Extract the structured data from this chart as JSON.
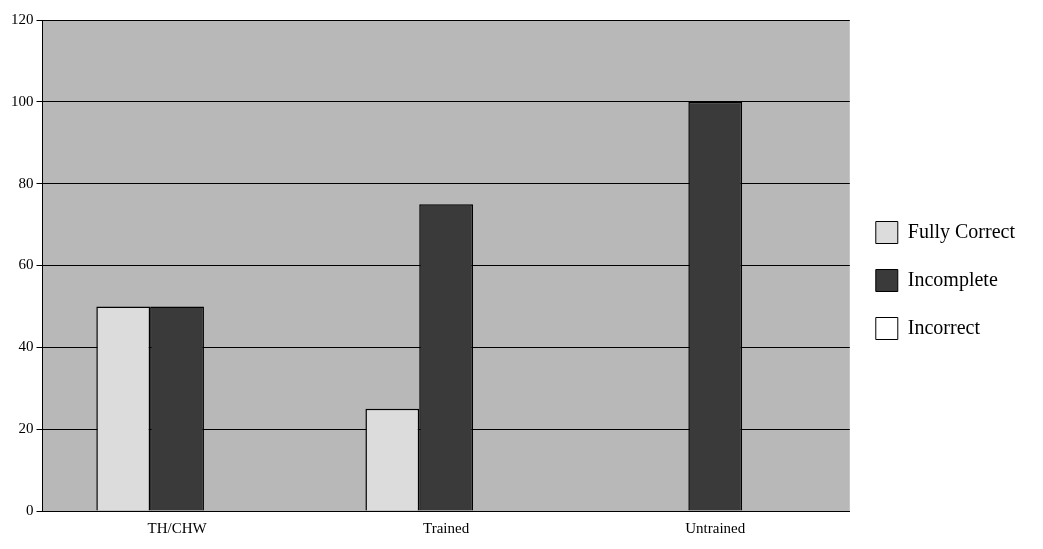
{
  "chart_data": {
    "type": "bar",
    "categories": [
      "TH/CHW",
      "Trained",
      "Untrained"
    ],
    "series": [
      {
        "name": "Fully Correct",
        "color": "#dcdcdc",
        "values": [
          50,
          25,
          0
        ]
      },
      {
        "name": "Incomplete",
        "color": "#3a3a3a",
        "values": [
          50,
          75,
          100
        ]
      },
      {
        "name": "Incorrect",
        "color": "#ffffff",
        "values": [
          0,
          0,
          0
        ]
      }
    ],
    "ylim": [
      0,
      120
    ],
    "yticks": [
      0,
      20,
      40,
      60,
      80,
      100,
      120
    ],
    "grid": "y",
    "legend": "right"
  }
}
